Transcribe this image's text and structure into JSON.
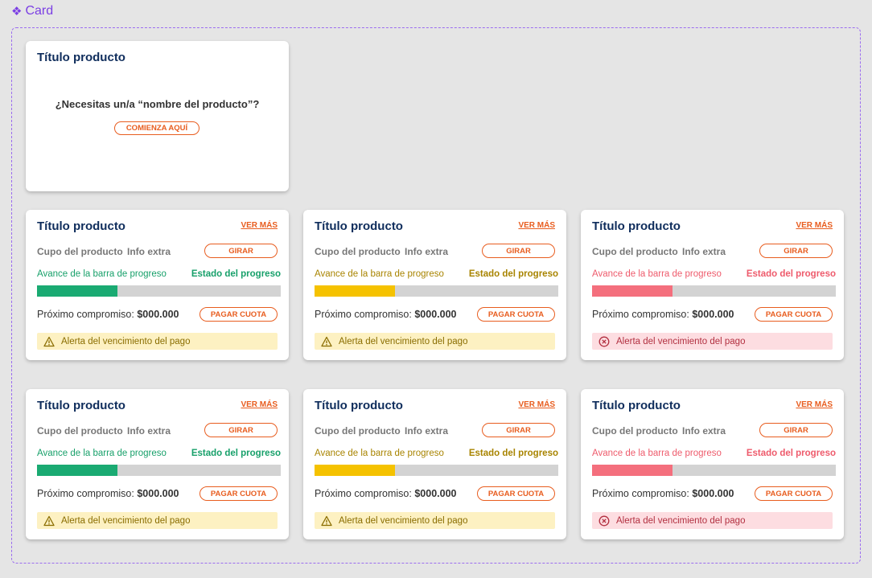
{
  "component": {
    "label": "Card",
    "icon": "component-diamond-icon"
  },
  "empty_card": {
    "title": "Título producto",
    "question": "¿Necesitas un/a “nombre del producto”?",
    "cta_label": "COMIENZA AQUÍ"
  },
  "colors": {
    "accent": "#e85d1f",
    "title": "#0f2d5c",
    "frame": "#9b6cf0",
    "green": "#1aaa72",
    "yellow": "#f5c200",
    "red": "#f46f7d"
  },
  "cards": [
    {
      "title": "Título producto",
      "ver_mas": "VER MÁS",
      "cupo": "Cupo del producto",
      "info": "Info extra",
      "girar": "GIRAR",
      "progress_label": "Avance de la barra de progreso",
      "progress_status": "Estado del progreso",
      "progress_fraction": 0.33,
      "variant": "green",
      "proximo_label": "Próximo compromiso:",
      "amount": "$000.000",
      "pagar": "PAGAR CUOTA",
      "alert_text": "Alerta del vencimiento del pago",
      "alert_type": "warning",
      "alert_icon": "warning-triangle-icon"
    },
    {
      "title": "Título producto",
      "ver_mas": "VER MÁS",
      "cupo": "Cupo del producto",
      "info": "Info extra",
      "girar": "GIRAR",
      "progress_label": "Avance de la barra de progreso",
      "progress_status": "Estado del progreso",
      "progress_fraction": 0.33,
      "variant": "yellow",
      "proximo_label": "Próximo compromiso:",
      "amount": "$000.000",
      "pagar": "PAGAR CUOTA",
      "alert_text": "Alerta del vencimiento del pago",
      "alert_type": "warning",
      "alert_icon": "warning-triangle-icon"
    },
    {
      "title": "Título producto",
      "ver_mas": "VER MÁS",
      "cupo": "Cupo del producto",
      "info": "Info extra",
      "girar": "GIRAR",
      "progress_label": "Avance de la barra de progreso",
      "progress_status": "Estado del progreso",
      "progress_fraction": 0.33,
      "variant": "red",
      "proximo_label": "Próximo compromiso:",
      "amount": "$000.000",
      "pagar": "PAGAR CUOTA",
      "alert_text": "Alerta del vencimiento del pago",
      "alert_type": "error",
      "alert_icon": "error-circle-x-icon"
    },
    {
      "title": "Título producto",
      "ver_mas": "VER MÁS",
      "cupo": "Cupo del producto",
      "info": "Info extra",
      "girar": "GIRAR",
      "progress_label": "Avance de la barra de progreso",
      "progress_status": "Estado del progreso",
      "progress_fraction": 0.33,
      "variant": "green",
      "proximo_label": "Próximo compromiso:",
      "amount": "$000.000",
      "pagar": "PAGAR CUOTA",
      "alert_text": "Alerta del vencimiento del pago",
      "alert_type": "warning",
      "alert_icon": "warning-triangle-icon"
    },
    {
      "title": "Título producto",
      "ver_mas": "VER MÁS",
      "cupo": "Cupo del producto",
      "info": "Info extra",
      "girar": "GIRAR",
      "progress_label": "Avance de la barra de progreso",
      "progress_status": "Estado del progreso",
      "progress_fraction": 0.33,
      "variant": "yellow",
      "proximo_label": "Próximo compromiso:",
      "amount": "$000.000",
      "pagar": "PAGAR CUOTA",
      "alert_text": "Alerta del vencimiento del pago",
      "alert_type": "warning",
      "alert_icon": "warning-triangle-icon"
    },
    {
      "title": "Título producto",
      "ver_mas": "VER MÁS",
      "cupo": "Cupo del producto",
      "info": "Info extra",
      "girar": "GIRAR",
      "progress_label": "Avance de la barra de progreso",
      "progress_status": "Estado del progreso",
      "progress_fraction": 0.33,
      "variant": "red",
      "proximo_label": "Próximo compromiso:",
      "amount": "$000.000",
      "pagar": "PAGAR CUOTA",
      "alert_text": "Alerta del vencimiento del pago",
      "alert_type": "error",
      "alert_icon": "error-circle-x-icon"
    }
  ]
}
